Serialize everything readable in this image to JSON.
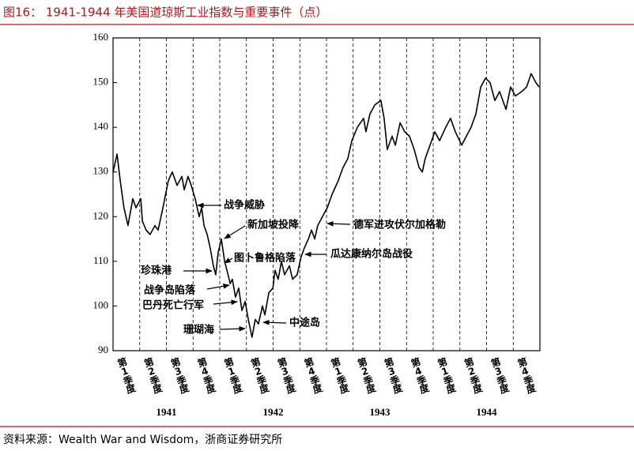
{
  "chart_data": {
    "type": "line",
    "title": "图16： 1941-1944 年美国道琼斯工业指数与重要事件（点）",
    "source": "资料来源：Wealth War and Wisdom，浙商证券研究所",
    "color": "#000000",
    "xlim": [
      0,
      16
    ],
    "xticks": [
      0,
      1,
      2,
      3,
      4,
      5,
      6,
      7,
      8,
      9,
      10,
      11,
      12,
      13,
      14,
      15,
      16
    ],
    "categories": [
      "第1季度",
      "第2季度",
      "第3季度",
      "第4季度",
      "第1季度",
      "第2季度",
      "第3季度",
      "第4季度",
      "第1季度",
      "第2季度",
      "第3季度",
      "第4季度",
      "第1季度",
      "第2季度",
      "第3季度",
      "第4季度"
    ],
    "years": [
      "1941",
      "1942",
      "1943",
      "1944"
    ],
    "ylim": [
      90,
      160
    ],
    "yticks": [
      90,
      100,
      110,
      120,
      130,
      140,
      150,
      160
    ],
    "x": [
      0,
      0.15,
      0.27,
      0.41,
      0.56,
      0.74,
      0.86,
      1.04,
      1.1,
      1.24,
      1.39,
      1.57,
      1.69,
      1.87,
      2.07,
      2.22,
      2.4,
      2.58,
      2.67,
      2.81,
      2.93,
      3.08,
      3.23,
      3.32,
      3.41,
      3.53,
      3.64,
      3.76,
      3.85,
      3.94,
      4.06,
      4.18,
      4.27,
      4.39,
      4.47,
      4.59,
      4.71,
      4.83,
      4.95,
      5.07,
      5.21,
      5.33,
      5.45,
      5.6,
      5.69,
      5.84,
      5.99,
      6.07,
      6.19,
      6.31,
      6.43,
      6.61,
      6.73,
      6.9,
      7.05,
      7.17,
      7.32,
      7.44,
      7.56,
      7.67,
      7.85,
      8.03,
      8.21,
      8.44,
      8.62,
      8.8,
      8.95,
      9.16,
      9.39,
      9.48,
      9.63,
      9.81,
      10.04,
      10.16,
      10.28,
      10.46,
      10.58,
      10.76,
      10.93,
      11.11,
      11.29,
      11.47,
      11.59,
      11.7,
      11.88,
      12.06,
      12.24,
      12.47,
      12.65,
      12.83,
      13.07,
      13.24,
      13.42,
      13.6,
      13.78,
      13.96,
      14.13,
      14.31,
      14.49,
      14.73,
      14.9,
      15.08,
      15.32,
      15.5,
      15.67,
      15.85,
      15.97
    ],
    "values": [
      130,
      134,
      128,
      122,
      118,
      124,
      122,
      124,
      119,
      117,
      116,
      118,
      117,
      122,
      128,
      130,
      127,
      129,
      126,
      129,
      127,
      124,
      120,
      122,
      118,
      116,
      113,
      109,
      107,
      112,
      115,
      110,
      108,
      105,
      106,
      102,
      104,
      99,
      101,
      97,
      93,
      97,
      96,
      100,
      98,
      103,
      104,
      108,
      106,
      110,
      107,
      109,
      106,
      107,
      111,
      113,
      115,
      117,
      115,
      118,
      120,
      122,
      125,
      128,
      131,
      133,
      137,
      140,
      142,
      139,
      143,
      145,
      146,
      142,
      135,
      138,
      136,
      141,
      139,
      138,
      135,
      131,
      130,
      133,
      136,
      139,
      137,
      140,
      142,
      139,
      136,
      138,
      140,
      143,
      149,
      151,
      150,
      146,
      148,
      144,
      149,
      147,
      148,
      149,
      152,
      150,
      149
    ],
    "annotations": [
      "战争威胁",
      "新加坡投降",
      "珍珠港",
      "图卜鲁格陷落",
      "战争岛陷落",
      "巴丹死亡行军",
      "珊瑚海",
      "中途岛",
      "德军进攻伏尔加格勒",
      "瓜达康纳尔岛战役"
    ]
  }
}
